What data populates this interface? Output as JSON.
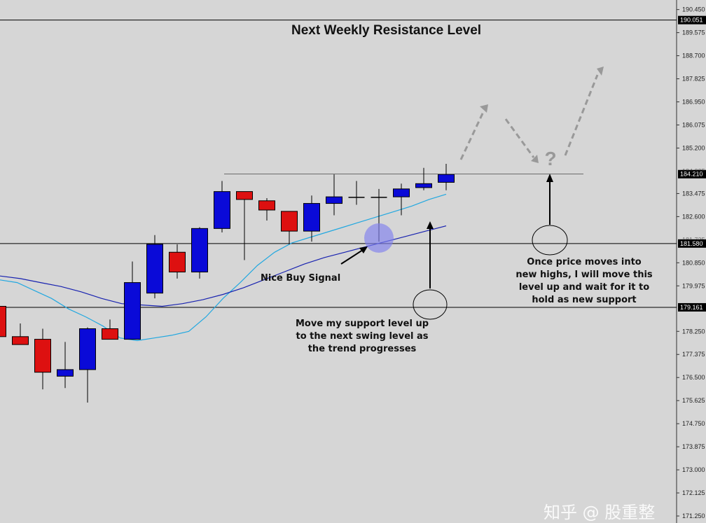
{
  "chart_data": {
    "type": "candlestick",
    "title": "Next Weekly Resistance Level",
    "ylim": [
      171.25,
      190.6
    ],
    "y_ticks": [
      190.45,
      189.575,
      188.7,
      187.825,
      186.95,
      186.075,
      185.2,
      183.475,
      182.6,
      180.85,
      179.975,
      178.25,
      177.375,
      176.5,
      175.625,
      174.75,
      173.875,
      173.0,
      172.125,
      171.25
    ],
    "y_tick_labels": [
      "190.450",
      "189.575",
      "188.700",
      "187.825",
      "186.950",
      "186.075",
      "185.200",
      "183.475",
      "182.600",
      "180.850",
      "179.975",
      "178.250",
      "177.375",
      "176.500",
      "175.625",
      "174.750",
      "173.875",
      "173.000",
      "172.125",
      "171.250"
    ],
    "partial_tick_labels": [
      {
        "value": 184.325,
        "text": "184.325"
      },
      {
        "value": 181.725,
        "text": "181.725"
      }
    ],
    "candles": [
      {
        "o": 179.2,
        "h": 179.2,
        "c": 178.05,
        "l": 178.05
      },
      {
        "o": 178.05,
        "h": 178.55,
        "c": 177.75,
        "l": 177.75
      },
      {
        "o": 177.95,
        "h": 178.35,
        "c": 176.7,
        "l": 176.05
      },
      {
        "o": 176.55,
        "h": 177.85,
        "c": 176.8,
        "l": 176.1
      },
      {
        "o": 176.8,
        "h": 178.4,
        "c": 178.35,
        "l": 175.55
      },
      {
        "o": 178.35,
        "h": 178.7,
        "c": 177.95,
        "l": 177.95
      },
      {
        "o": 177.95,
        "h": 180.9,
        "c": 180.1,
        "l": 177.95
      },
      {
        "o": 179.7,
        "h": 181.9,
        "c": 181.55,
        "l": 179.5
      },
      {
        "o": 181.25,
        "h": 181.55,
        "c": 180.5,
        "l": 180.25
      },
      {
        "o": 180.5,
        "h": 182.2,
        "c": 182.15,
        "l": 180.25
      },
      {
        "o": 182.15,
        "h": 183.95,
        "c": 183.55,
        "l": 182.0
      },
      {
        "o": 183.55,
        "h": 183.55,
        "c": 183.25,
        "l": 180.95
      },
      {
        "o": 183.2,
        "h": 183.3,
        "c": 182.85,
        "l": 182.45
      },
      {
        "o": 182.8,
        "h": 182.8,
        "c": 182.05,
        "l": 181.55
      },
      {
        "o": 182.05,
        "h": 183.4,
        "c": 183.1,
        "l": 181.65
      },
      {
        "o": 183.1,
        "h": 184.2,
        "c": 183.35,
        "l": 182.65
      },
      {
        "o": 183.35,
        "h": 183.95,
        "c": 183.35,
        "l": 183.05
      },
      {
        "o": 183.35,
        "h": 183.65,
        "c": 183.35,
        "l": 181.65
      },
      {
        "o": 183.35,
        "h": 183.85,
        "c": 183.65,
        "l": 182.65
      },
      {
        "o": 183.7,
        "h": 184.45,
        "c": 183.85,
        "l": 183.6
      },
      {
        "o": 183.9,
        "h": 184.6,
        "c": 184.2,
        "l": 183.6
      }
    ],
    "moving_average_fast": [
      180.2,
      180.1,
      179.8,
      179.5,
      179.1,
      178.8,
      178.45,
      178.0,
      177.9,
      178.0,
      178.1,
      178.25,
      178.8,
      179.5,
      180.1,
      180.75,
      181.25,
      181.6,
      181.8,
      182.0,
      182.2,
      182.4,
      182.6,
      182.8,
      183.0,
      183.25,
      183.45
    ],
    "moving_average_slow": [
      180.35,
      180.25,
      180.1,
      179.95,
      179.75,
      179.5,
      179.3,
      179.25,
      179.2,
      179.3,
      179.45,
      179.65,
      179.9,
      180.2,
      180.5,
      180.8,
      181.05,
      181.25,
      181.45,
      181.65,
      181.85,
      182.05,
      182.25
    ],
    "levels": [
      {
        "value": 190.051,
        "label": "190.051"
      },
      {
        "value": 184.21,
        "label": "184.210"
      },
      {
        "value": 181.58,
        "label": "181.580"
      },
      {
        "value": 179.161,
        "label": "179.161"
      }
    ],
    "colors": {
      "bull": "#0a0ad8",
      "bear": "#dd1010",
      "fast_ma": "#22a8e0",
      "slow_ma": "#1822b0",
      "background": "#d6d6d6",
      "level_line": "#000000",
      "projection_arrow": "#999999",
      "signal_marker": "#8080ee"
    },
    "projection_mark": "?"
  },
  "annotations": {
    "signal_label": "Nice Buy Signal",
    "support_note": [
      "Move my support level up",
      "to the next swing level as",
      "the trend progresses"
    ],
    "new_high_note": [
      "Once price moves into",
      "new highs, I will move this",
      "level up and wait for it to",
      "hold as new support"
    ]
  },
  "watermark": "知乎 @ 股重整"
}
